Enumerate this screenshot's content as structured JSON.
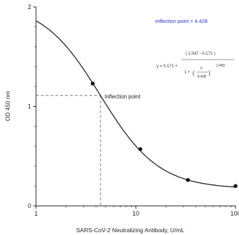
{
  "chart_data": {
    "type": "line",
    "title": "",
    "xlabel": "SARS-CoV-2 Neutralizing Antibody, U/mL",
    "ylabel": "OD 450 nm",
    "x_scale": "log",
    "xlim": [
      1,
      100
    ],
    "ylim": [
      0,
      2
    ],
    "x_ticks": [
      1,
      10,
      100
    ],
    "x_tick_labels": [
      "1",
      "10",
      "100"
    ],
    "y_ticks": [
      0,
      1,
      2
    ],
    "y_tick_labels": [
      "0",
      "1",
      "2"
    ],
    "grid": false,
    "model": {
      "bottom": 0.171,
      "top": 2.047,
      "ec50": 4.428,
      "hill": 1.483
    },
    "points": [
      {
        "x": 3.7,
        "y": 1.23
      },
      {
        "x": 11.1,
        "y": 0.57
      },
      {
        "x": 33.3,
        "y": 0.26
      },
      {
        "x": 100,
        "y": 0.2
      }
    ],
    "inflection": {
      "x": 4.428,
      "y": 1.11
    },
    "annotations": {
      "inflection_title": "Inflection point = 4.428",
      "inflection_point": "Inflection point",
      "eq_numerator": "( 2.047 - 0.171 )",
      "eq_prefix": "y = 0.171 +",
      "eq_denom_one": "1 +",
      "eq_x": "X",
      "eq_ec50": "4.428",
      "eq_hill": "1.483",
      "eq_open": "(",
      "eq_close": ")"
    },
    "colors": {
      "curve": "#222222",
      "point": "#111111",
      "guide": "#777777",
      "title_ann": "#2233cc"
    }
  }
}
